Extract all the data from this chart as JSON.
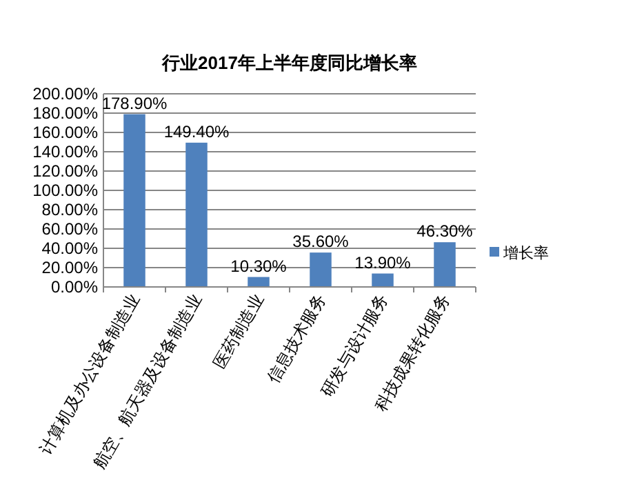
{
  "chart_data": {
    "type": "bar",
    "title": "行业2017年上半年度同比增长率",
    "categories": [
      "计算机及办公设备制造业",
      "航空、航天器及设备制造业",
      "医药制造业",
      "信息技术服务",
      "研发与设计服务",
      "科技成果转化服务"
    ],
    "series": [
      {
        "name": "增长率",
        "color": "#4f81bd",
        "values": [
          178.9,
          149.4,
          10.3,
          35.6,
          13.9,
          46.3
        ],
        "value_labels": [
          "178.90%",
          "149.40%",
          "10.30%",
          "35.60%",
          "13.90%",
          "46.30%"
        ]
      }
    ],
    "ylim": [
      0,
      200
    ],
    "yticks": [
      {
        "value": 0,
        "label": "0.00%"
      },
      {
        "value": 20,
        "label": "20.00%"
      },
      {
        "value": 40,
        "label": "40.00%"
      },
      {
        "value": 60,
        "label": "60.00%"
      },
      {
        "value": 80,
        "label": "80.00%"
      },
      {
        "value": 100,
        "label": "100.00%"
      },
      {
        "value": 120,
        "label": "120.00%"
      },
      {
        "value": 140,
        "label": "140.00%"
      },
      {
        "value": 160,
        "label": "160.00%"
      },
      {
        "value": 180,
        "label": "180.00%"
      },
      {
        "value": 200,
        "label": "200.00%"
      }
    ],
    "grid": "y",
    "legend": "right"
  }
}
